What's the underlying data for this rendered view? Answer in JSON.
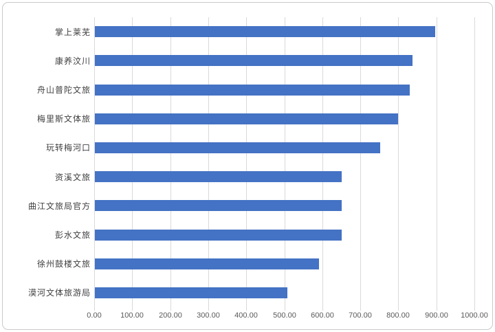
{
  "chart_data": {
    "type": "bar",
    "orientation": "horizontal",
    "title": "",
    "xlabel": "",
    "ylabel": "",
    "categories": [
      "掌上莱芜",
      "康养汶川",
      "舟山普陀文旅",
      "梅里斯文体旅",
      "玩转梅河口",
      "资溪文旅",
      "曲江文旅局官方",
      "彭水文旅",
      "徐州鼓楼文旅",
      "漠河文体旅游局"
    ],
    "values": [
      895,
      836,
      828,
      798,
      750,
      650,
      650,
      650,
      590,
      507
    ],
    "xlim": [
      0,
      1000
    ],
    "tick_labels": [
      "0.00",
      "100.00",
      "200.00",
      "300.00",
      "400.00",
      "500.00",
      "600.00",
      "700.00",
      "800.00",
      "900.00",
      "1000.00"
    ],
    "grid": "vertical-on",
    "legend": "none",
    "colors": {
      "bar": "#4472C4",
      "gridline": "#d9d9d9",
      "axis_text": "#595959",
      "category_text": "#404040",
      "frame_border": "#c9c9c9"
    }
  }
}
